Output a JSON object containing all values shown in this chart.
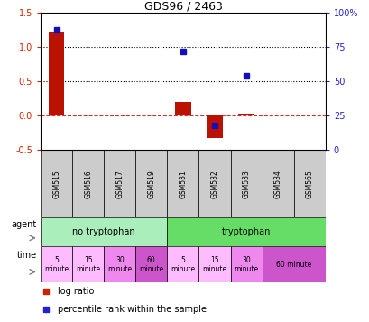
{
  "title": "GDS96 / 2463",
  "samples": [
    "GSM515",
    "GSM516",
    "GSM517",
    "GSM519",
    "GSM531",
    "GSM532",
    "GSM533",
    "GSM534",
    "GSM565"
  ],
  "log_ratio": [
    1.22,
    0.0,
    0.0,
    0.0,
    0.2,
    -0.32,
    0.03,
    0.0,
    0.0
  ],
  "percentile": [
    88,
    null,
    null,
    null,
    72,
    18,
    54,
    null,
    null
  ],
  "ylim_left": [
    -0.5,
    1.5
  ],
  "ylim_right": [
    0,
    100
  ],
  "yticks_left": [
    -0.5,
    0.0,
    0.5,
    1.0,
    1.5
  ],
  "yticks_right": [
    0,
    25,
    50,
    75,
    100
  ],
  "hlines": [
    1.0,
    0.5
  ],
  "bar_color": "#bb1100",
  "dot_color": "#1111bb",
  "agent_no_trp_color": "#aaeebb",
  "agent_trp_color": "#66dd66",
  "time_colors": [
    "#ffbbff",
    "#ffbbff",
    "#ee88ee",
    "#cc55cc",
    "#ffbbff",
    "#ffbbff",
    "#ee88ee",
    "#cc55cc"
  ],
  "sample_box_color": "#cccccc",
  "zero_line_color": "#cc3333",
  "left_axis_color": "#cc2200",
  "right_axis_color": "#2222cc",
  "legend_bar_color": "#cc2200",
  "legend_dot_color": "#2222cc"
}
